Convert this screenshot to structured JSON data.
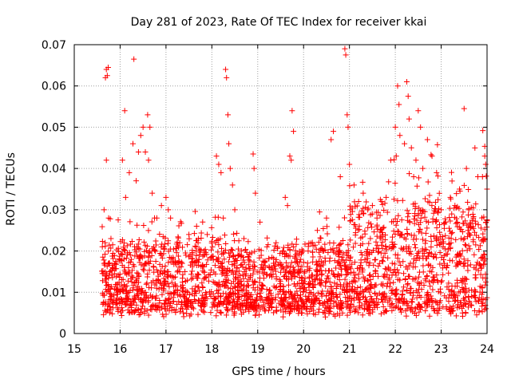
{
  "chart_data": {
    "type": "scatter",
    "title": "Day 281 of 2023, Rate Of TEC Index for receiver kkai",
    "xlabel": "GPS time / hours",
    "ylabel": "ROTI / TECUs",
    "xlim": [
      15,
      24
    ],
    "ylim": [
      0,
      0.07
    ],
    "x_ticks": [
      "15",
      "16",
      "17",
      "18",
      "19",
      "20",
      "21",
      "22",
      "23",
      "24"
    ],
    "y_ticks": [
      "0",
      "0.01",
      "0.02",
      "0.03",
      "0.04",
      "0.05",
      "0.06",
      "0.07"
    ],
    "grid": true,
    "marker": "plus",
    "color": "#ff0000",
    "x_range_of_data": [
      15.6,
      24.0
    ],
    "typical_band": [
      0.004,
      0.02
    ],
    "series": [
      {
        "name": "ROTI",
        "points": [
          [
            15.7,
            0.064
          ],
          [
            15.72,
            0.0625
          ],
          [
            15.74,
            0.0645
          ],
          [
            15.68,
            0.062
          ],
          [
            15.7,
            0.042
          ],
          [
            15.65,
            0.03
          ],
          [
            15.75,
            0.028
          ],
          [
            15.8,
            0.023
          ],
          [
            16.05,
            0.042
          ],
          [
            16.1,
            0.054
          ],
          [
            16.12,
            0.033
          ],
          [
            16.2,
            0.039
          ],
          [
            16.28,
            0.046
          ],
          [
            16.3,
            0.0665
          ],
          [
            16.35,
            0.037
          ],
          [
            16.4,
            0.044
          ],
          [
            16.45,
            0.048
          ],
          [
            16.5,
            0.05
          ],
          [
            16.55,
            0.044
          ],
          [
            16.6,
            0.053
          ],
          [
            16.62,
            0.042
          ],
          [
            16.65,
            0.05
          ],
          [
            16.7,
            0.034
          ],
          [
            16.75,
            0.028
          ],
          [
            16.8,
            0.028
          ],
          [
            16.9,
            0.031
          ],
          [
            17.0,
            0.033
          ],
          [
            17.05,
            0.03
          ],
          [
            17.1,
            0.028
          ],
          [
            17.3,
            0.022
          ],
          [
            17.5,
            0.024
          ],
          [
            17.7,
            0.022
          ],
          [
            17.9,
            0.024
          ],
          [
            18.1,
            0.043
          ],
          [
            18.15,
            0.041
          ],
          [
            18.2,
            0.039
          ],
          [
            18.25,
            0.028
          ],
          [
            18.3,
            0.064
          ],
          [
            18.32,
            0.062
          ],
          [
            18.35,
            0.053
          ],
          [
            18.37,
            0.046
          ],
          [
            18.4,
            0.04
          ],
          [
            18.45,
            0.036
          ],
          [
            18.5,
            0.03
          ],
          [
            18.7,
            0.023
          ],
          [
            18.9,
            0.0435
          ],
          [
            18.92,
            0.04
          ],
          [
            18.95,
            0.034
          ],
          [
            19.05,
            0.027
          ],
          [
            19.2,
            0.021
          ],
          [
            19.4,
            0.022
          ],
          [
            19.6,
            0.033
          ],
          [
            19.65,
            0.031
          ],
          [
            19.7,
            0.043
          ],
          [
            19.73,
            0.042
          ],
          [
            19.75,
            0.054
          ],
          [
            19.78,
            0.049
          ],
          [
            19.9,
            0.019
          ],
          [
            20.1,
            0.02
          ],
          [
            20.3,
            0.025
          ],
          [
            20.5,
            0.028
          ],
          [
            20.6,
            0.047
          ],
          [
            20.65,
            0.049
          ],
          [
            20.8,
            0.038
          ],
          [
            20.9,
            0.069
          ],
          [
            20.92,
            0.0675
          ],
          [
            20.95,
            0.053
          ],
          [
            20.97,
            0.05
          ],
          [
            21.0,
            0.041
          ],
          [
            21.1,
            0.036
          ],
          [
            21.2,
            0.032
          ],
          [
            21.3,
            0.034
          ],
          [
            21.4,
            0.03
          ],
          [
            21.5,
            0.031
          ],
          [
            21.6,
            0.028
          ],
          [
            21.7,
            0.032
          ],
          [
            21.8,
            0.033
          ],
          [
            21.9,
            0.042
          ],
          [
            22.0,
            0.05
          ],
          [
            22.05,
            0.06
          ],
          [
            22.08,
            0.0555
          ],
          [
            22.1,
            0.048
          ],
          [
            22.2,
            0.046
          ],
          [
            22.25,
            0.061
          ],
          [
            22.28,
            0.0575
          ],
          [
            22.3,
            0.052
          ],
          [
            22.35,
            0.045
          ],
          [
            22.4,
            0.038
          ],
          [
            22.45,
            0.042
          ],
          [
            22.5,
            0.054
          ],
          [
            22.55,
            0.05
          ],
          [
            22.6,
            0.04
          ],
          [
            22.7,
            0.047
          ],
          [
            22.8,
            0.043
          ],
          [
            22.9,
            0.039
          ],
          [
            23.0,
            0.03
          ],
          [
            23.1,
            0.027
          ],
          [
            23.2,
            0.033
          ],
          [
            23.3,
            0.031
          ],
          [
            23.4,
            0.035
          ],
          [
            23.5,
            0.0545
          ],
          [
            23.55,
            0.04
          ],
          [
            23.6,
            0.03
          ],
          [
            23.7,
            0.028
          ],
          [
            23.8,
            0.038
          ],
          [
            23.9,
            0.038
          ],
          [
            23.95,
            0.043
          ],
          [
            23.97,
            0.041
          ],
          [
            24.0,
            0.035
          ]
        ]
      }
    ]
  }
}
